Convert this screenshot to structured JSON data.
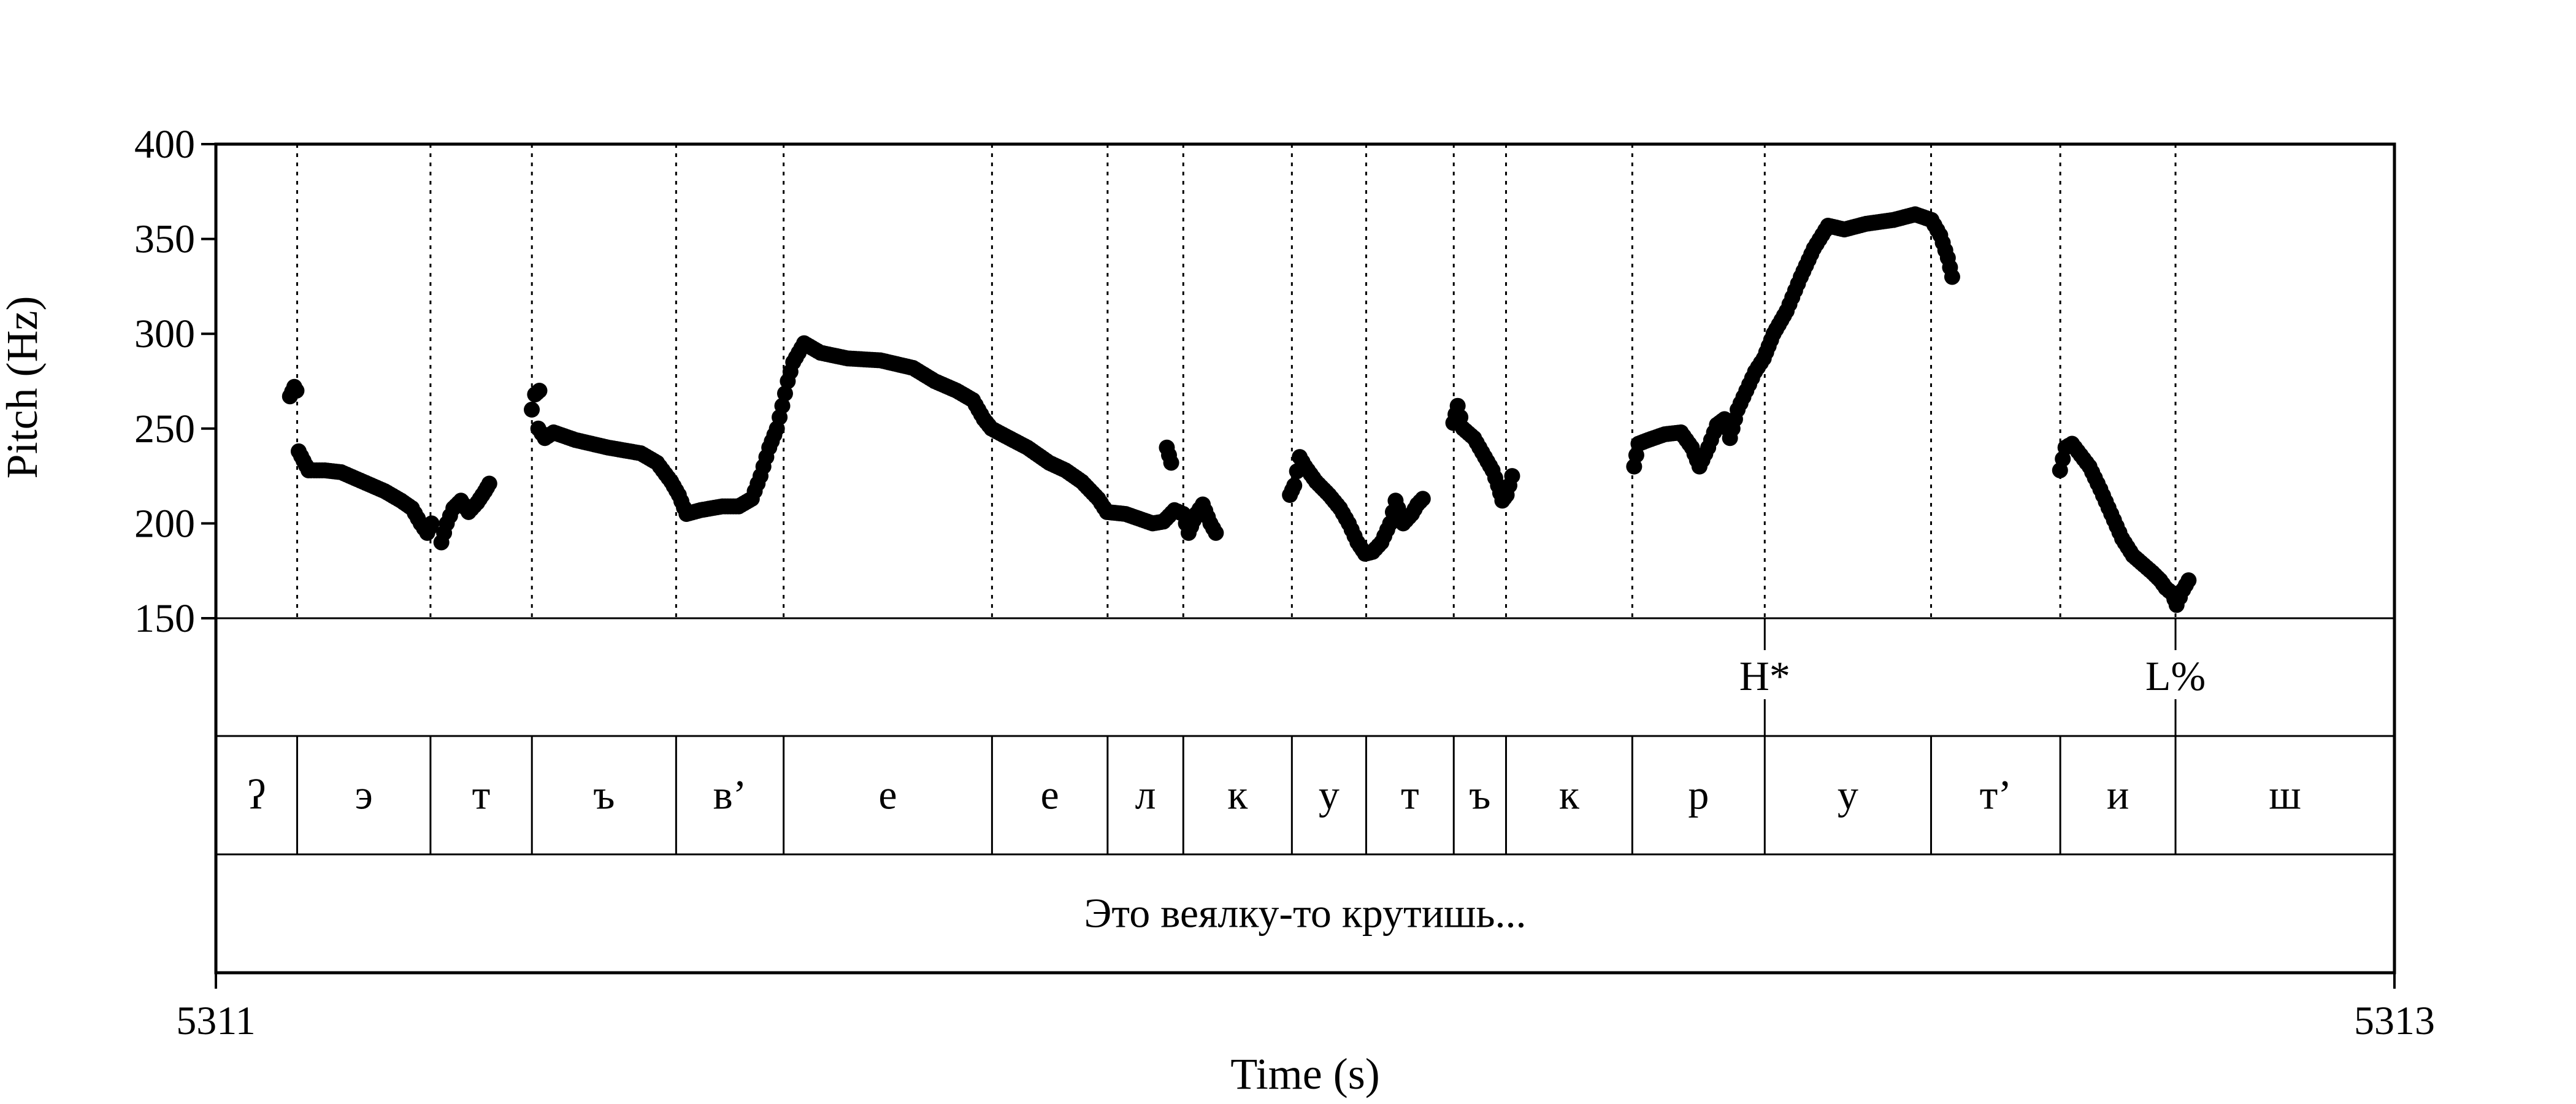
{
  "chart_data": {
    "type": "scatter",
    "ylabel": "Pitch (Hz)",
    "xlabel": "Time (s)",
    "ylim": [
      150,
      400
    ],
    "yticks": [
      150,
      200,
      250,
      300,
      350,
      400
    ],
    "xlim": [
      5311,
      5313
    ],
    "xticks": [
      {
        "value": 5311,
        "label": "5311"
      },
      {
        "value": 5313,
        "label": "5313"
      }
    ],
    "segment_boundaries": [
      5311.0746,
      5311.197,
      5311.2901,
      5311.4225,
      5311.5212,
      5311.7125,
      5311.8186,
      5311.8881,
      5311.9878,
      5312.056,
      5312.1364,
      5312.1844,
      5312.3003,
      5312.4219,
      5312.5746,
      5312.6932,
      5312.799
    ],
    "tones": [
      {
        "label": "H*",
        "time": 5312.4219
      },
      {
        "label": "L%",
        "time": 5312.799
      }
    ],
    "segments": [
      {
        "start": 5311.0,
        "end": 5311.0746,
        "label": "ʔ"
      },
      {
        "start": 5311.0746,
        "end": 5311.197,
        "label": "э"
      },
      {
        "start": 5311.197,
        "end": 5311.2901,
        "label": "т"
      },
      {
        "start": 5311.2901,
        "end": 5311.4225,
        "label": "ъ"
      },
      {
        "start": 5311.4225,
        "end": 5311.5212,
        "label": "в’"
      },
      {
        "start": 5311.5212,
        "end": 5311.7125,
        "label": "е"
      },
      {
        "start": 5311.7125,
        "end": 5311.8186,
        "label": "е"
      },
      {
        "start": 5311.8186,
        "end": 5311.8881,
        "label": "л"
      },
      {
        "start": 5311.8881,
        "end": 5311.9878,
        "label": "к"
      },
      {
        "start": 5311.9878,
        "end": 5312.056,
        "label": "у"
      },
      {
        "start": 5312.056,
        "end": 5312.1364,
        "label": "т"
      },
      {
        "start": 5312.1364,
        "end": 5312.1844,
        "label": "ъ"
      },
      {
        "start": 5312.1844,
        "end": 5312.3003,
        "label": "к"
      },
      {
        "start": 5312.3003,
        "end": 5312.4219,
        "label": "р"
      },
      {
        "start": 5312.4219,
        "end": 5312.5746,
        "label": "у"
      },
      {
        "start": 5312.5746,
        "end": 5312.6932,
        "label": "т’"
      },
      {
        "start": 5312.6932,
        "end": 5312.799,
        "label": "и"
      },
      {
        "start": 5312.799,
        "end": 5313.0,
        "label": "ш"
      }
    ],
    "phrase": {
      "start": 5311.0,
      "end": 5313.0,
      "label": "Это веялку-то крутишь..."
    },
    "pitch_runs": [
      [
        [
          5311.068,
          267
        ],
        [
          5311.072,
          272
        ],
        [
          5311.074,
          270
        ]
      ],
      [
        [
          5311.076,
          238
        ],
        [
          5311.085,
          228
        ],
        [
          5311.1,
          228
        ],
        [
          5311.115,
          227
        ],
        [
          5311.135,
          222
        ],
        [
          5311.155,
          217
        ],
        [
          5311.17,
          212
        ],
        [
          5311.18,
          208
        ],
        [
          5311.188,
          200
        ],
        [
          5311.194,
          195
        ],
        [
          5311.198,
          200
        ]
      ],
      [
        [
          5311.207,
          190
        ],
        [
          5311.212,
          200
        ],
        [
          5311.218,
          208
        ],
        [
          5311.225,
          212
        ],
        [
          5311.232,
          206
        ],
        [
          5311.24,
          211
        ],
        [
          5311.247,
          217
        ],
        [
          5311.251,
          221
        ]
      ],
      [
        [
          5311.29,
          260
        ],
        [
          5311.293,
          268
        ],
        [
          5311.297,
          270
        ]
      ],
      [
        [
          5311.296,
          250
        ],
        [
          5311.302,
          245
        ],
        [
          5311.31,
          248
        ],
        [
          5311.33,
          244
        ],
        [
          5311.36,
          240
        ],
        [
          5311.39,
          237
        ],
        [
          5311.405,
          232
        ],
        [
          5311.418,
          222
        ],
        [
          5311.425,
          215
        ],
        [
          5311.432,
          205
        ],
        [
          5311.445,
          207
        ],
        [
          5311.465,
          209
        ],
        [
          5311.48,
          209
        ],
        [
          5311.492,
          213
        ],
        [
          5311.5,
          225
        ],
        [
          5311.508,
          240
        ],
        [
          5311.515,
          250
        ],
        [
          5311.52,
          262
        ],
        [
          5311.525,
          275
        ],
        [
          5311.53,
          285
        ],
        [
          5311.54,
          295
        ],
        [
          5311.555,
          290
        ],
        [
          5311.58,
          287
        ],
        [
          5311.61,
          286
        ],
        [
          5311.64,
          282
        ],
        [
          5311.66,
          275
        ],
        [
          5311.68,
          270
        ],
        [
          5311.695,
          265
        ],
        [
          5311.705,
          255
        ],
        [
          5311.712,
          250
        ],
        [
          5311.725,
          246
        ],
        [
          5311.745,
          240
        ],
        [
          5311.765,
          232
        ],
        [
          5311.78,
          228
        ],
        [
          5311.795,
          222
        ],
        [
          5311.81,
          213
        ],
        [
          5311.818,
          206
        ],
        [
          5311.835,
          205
        ],
        [
          5311.86,
          200
        ],
        [
          5311.87,
          201
        ],
        [
          5311.88,
          207
        ],
        [
          5311.888,
          205
        ],
        [
          5311.893,
          195
        ],
        [
          5311.9,
          205
        ],
        [
          5311.906,
          210
        ],
        [
          5311.913,
          200
        ],
        [
          5311.918,
          195
        ]
      ],
      [
        [
          5311.873,
          240
        ],
        [
          5311.877,
          232
        ]
      ],
      [
        [
          5311.986,
          215
        ],
        [
          5311.99,
          220
        ],
        [
          5311.995,
          235
        ],
        [
          5312.0,
          230
        ],
        [
          5312.01,
          222
        ],
        [
          5312.022,
          215
        ],
        [
          5312.032,
          208
        ],
        [
          5312.04,
          200
        ],
        [
          5312.048,
          190
        ],
        [
          5312.055,
          184
        ],
        [
          5312.062,
          185
        ],
        [
          5312.07,
          190
        ],
        [
          5312.078,
          200
        ],
        [
          5312.083,
          212
        ],
        [
          5312.09,
          200
        ],
        [
          5312.098,
          205
        ],
        [
          5312.103,
          210
        ],
        [
          5312.108,
          213
        ]
      ],
      [
        [
          5312.136,
          253
        ],
        [
          5312.14,
          262
        ],
        [
          5312.145,
          250
        ],
        [
          5312.155,
          245
        ],
        [
          5312.165,
          235
        ],
        [
          5312.172,
          228
        ],
        [
          5312.177,
          220
        ],
        [
          5312.181,
          212
        ],
        [
          5312.185,
          215
        ],
        [
          5312.19,
          225
        ]
      ],
      [
        [
          5312.302,
          230
        ],
        [
          5312.306,
          242
        ],
        [
          5312.315,
          244
        ],
        [
          5312.33,
          247
        ],
        [
          5312.345,
          248
        ],
        [
          5312.355,
          240
        ],
        [
          5312.362,
          230
        ],
        [
          5312.37,
          240
        ],
        [
          5312.378,
          252
        ],
        [
          5312.385,
          255
        ],
        [
          5312.39,
          245
        ],
        [
          5312.397,
          260
        ],
        [
          5312.405,
          270
        ],
        [
          5312.413,
          280
        ],
        [
          5312.421,
          287
        ],
        [
          5312.43,
          300
        ],
        [
          5312.442,
          312
        ],
        [
          5312.455,
          330
        ],
        [
          5312.467,
          345
        ],
        [
          5312.48,
          357
        ],
        [
          5312.495,
          355
        ],
        [
          5312.515,
          358
        ],
        [
          5312.54,
          360
        ],
        [
          5312.56,
          363
        ],
        [
          5312.575,
          360
        ],
        [
          5312.583,
          352
        ],
        [
          5312.59,
          340
        ],
        [
          5312.594,
          330
        ]
      ],
      [
        [
          5312.693,
          228
        ],
        [
          5312.698,
          240
        ],
        [
          5312.704,
          242
        ],
        [
          5312.712,
          236
        ],
        [
          5312.72,
          230
        ],
        [
          5312.73,
          218
        ],
        [
          5312.74,
          205
        ],
        [
          5312.75,
          192
        ],
        [
          5312.76,
          183
        ],
        [
          5312.77,
          178
        ],
        [
          5312.778,
          174
        ],
        [
          5312.785,
          170
        ],
        [
          5312.79,
          166
        ],
        [
          5312.796,
          163
        ],
        [
          5312.8,
          157
        ],
        [
          5312.806,
          165
        ],
        [
          5312.811,
          170
        ]
      ]
    ]
  }
}
